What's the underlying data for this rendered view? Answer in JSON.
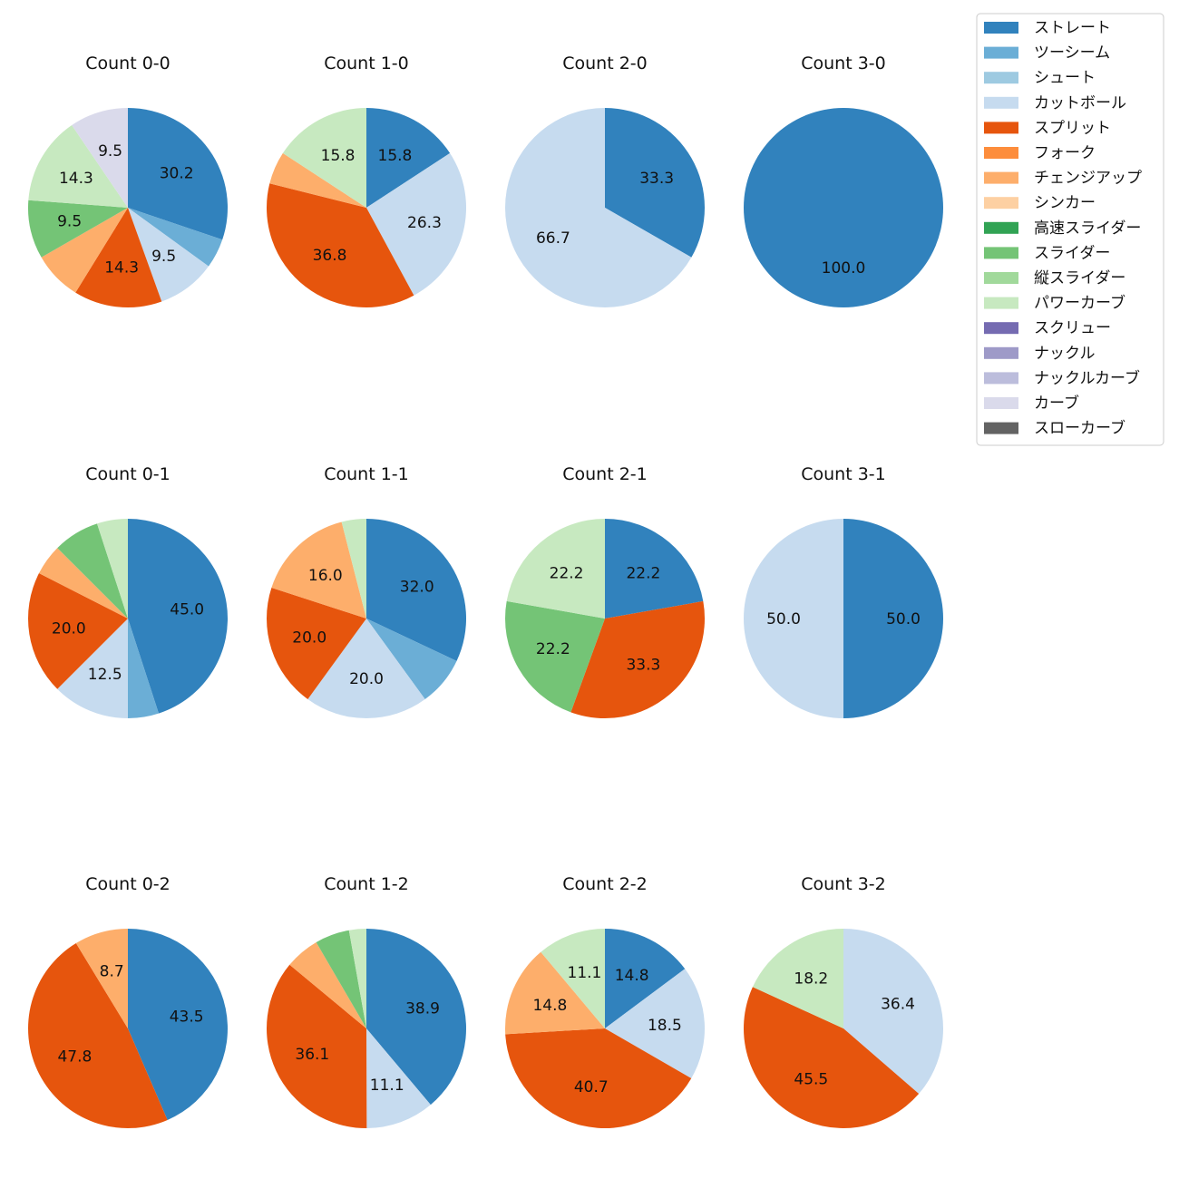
{
  "chart_data": {
    "type": "pie",
    "legend_position": "top-right",
    "categories": [
      {
        "name": "ストレート",
        "color": "#3182bd"
      },
      {
        "name": "ツーシーム",
        "color": "#6baed6"
      },
      {
        "name": "シュート",
        "color": "#9ecae1"
      },
      {
        "name": "カットボール",
        "color": "#c6dbef"
      },
      {
        "name": "スプリット",
        "color": "#e6550d"
      },
      {
        "name": "フォーク",
        "color": "#fd8d3c"
      },
      {
        "name": "チェンジアップ",
        "color": "#fdae6b"
      },
      {
        "name": "シンカー",
        "color": "#fdd0a2"
      },
      {
        "name": "高速スライダー",
        "color": "#31a354"
      },
      {
        "name": "スライダー",
        "color": "#74c476"
      },
      {
        "name": "縦スライダー",
        "color": "#a1d99b"
      },
      {
        "name": "パワーカーブ",
        "color": "#c7e9c0"
      },
      {
        "name": "スクリュー",
        "color": "#756bb1"
      },
      {
        "name": "ナックル",
        "color": "#9e9ac8"
      },
      {
        "name": "ナックルカーブ",
        "color": "#bcbddc"
      },
      {
        "name": "カーブ",
        "color": "#dadaeb"
      },
      {
        "name": "スローカーブ",
        "color": "#636363"
      }
    ],
    "pies": [
      {
        "title": "Count 0-0",
        "slices": [
          {
            "category": "ストレート",
            "value": 30.2,
            "label": "30.2"
          },
          {
            "category": "ツーシーム",
            "value": 4.8,
            "label": ""
          },
          {
            "category": "カットボール",
            "value": 9.5,
            "label": "9.5"
          },
          {
            "category": "スプリット",
            "value": 14.3,
            "label": "14.3"
          },
          {
            "category": "チェンジアップ",
            "value": 7.9,
            "label": ""
          },
          {
            "category": "スライダー",
            "value": 9.5,
            "label": "9.5"
          },
          {
            "category": "パワーカーブ",
            "value": 14.3,
            "label": "14.3"
          },
          {
            "category": "カーブ",
            "value": 9.5,
            "label": "9.5"
          }
        ]
      },
      {
        "title": "Count 1-0",
        "slices": [
          {
            "category": "ストレート",
            "value": 15.8,
            "label": "15.8"
          },
          {
            "category": "カットボール",
            "value": 26.3,
            "label": "26.3"
          },
          {
            "category": "スプリット",
            "value": 36.8,
            "label": "36.8"
          },
          {
            "category": "チェンジアップ",
            "value": 5.3,
            "label": ""
          },
          {
            "category": "パワーカーブ",
            "value": 15.8,
            "label": "15.8"
          }
        ]
      },
      {
        "title": "Count 2-0",
        "slices": [
          {
            "category": "ストレート",
            "value": 33.3,
            "label": "33.3"
          },
          {
            "category": "カットボール",
            "value": 66.7,
            "label": "66.7"
          }
        ]
      },
      {
        "title": "Count 3-0",
        "slices": [
          {
            "category": "ストレート",
            "value": 100.0,
            "label": "100.0"
          }
        ]
      },
      {
        "title": "Count 0-1",
        "slices": [
          {
            "category": "ストレート",
            "value": 45.0,
            "label": "45.0"
          },
          {
            "category": "ツーシーム",
            "value": 5.0,
            "label": ""
          },
          {
            "category": "カットボール",
            "value": 12.5,
            "label": "12.5"
          },
          {
            "category": "スプリット",
            "value": 20.0,
            "label": "20.0"
          },
          {
            "category": "チェンジアップ",
            "value": 5.0,
            "label": ""
          },
          {
            "category": "スライダー",
            "value": 7.5,
            "label": ""
          },
          {
            "category": "パワーカーブ",
            "value": 5.0,
            "label": ""
          }
        ]
      },
      {
        "title": "Count 1-1",
        "slices": [
          {
            "category": "ストレート",
            "value": 32.0,
            "label": "32.0"
          },
          {
            "category": "ツーシーム",
            "value": 8.0,
            "label": ""
          },
          {
            "category": "カットボール",
            "value": 20.0,
            "label": "20.0"
          },
          {
            "category": "スプリット",
            "value": 20.0,
            "label": "20.0"
          },
          {
            "category": "チェンジアップ",
            "value": 16.0,
            "label": "16.0"
          },
          {
            "category": "パワーカーブ",
            "value": 4.0,
            "label": ""
          }
        ]
      },
      {
        "title": "Count 2-1",
        "slices": [
          {
            "category": "ストレート",
            "value": 22.2,
            "label": "22.2"
          },
          {
            "category": "スプリット",
            "value": 33.3,
            "label": "33.3"
          },
          {
            "category": "スライダー",
            "value": 22.2,
            "label": "22.2"
          },
          {
            "category": "パワーカーブ",
            "value": 22.2,
            "label": "22.2"
          }
        ]
      },
      {
        "title": "Count 3-1",
        "slices": [
          {
            "category": "ストレート",
            "value": 50.0,
            "label": "50.0"
          },
          {
            "category": "カットボール",
            "value": 50.0,
            "label": "50.0"
          }
        ]
      },
      {
        "title": "Count 0-2",
        "slices": [
          {
            "category": "ストレート",
            "value": 43.5,
            "label": "43.5"
          },
          {
            "category": "スプリット",
            "value": 47.8,
            "label": "47.8"
          },
          {
            "category": "チェンジアップ",
            "value": 8.7,
            "label": "8.7"
          }
        ]
      },
      {
        "title": "Count 1-2",
        "slices": [
          {
            "category": "ストレート",
            "value": 38.9,
            "label": "38.9"
          },
          {
            "category": "カットボール",
            "value": 11.1,
            "label": "11.1"
          },
          {
            "category": "スプリット",
            "value": 36.1,
            "label": "36.1"
          },
          {
            "category": "チェンジアップ",
            "value": 5.6,
            "label": ""
          },
          {
            "category": "スライダー",
            "value": 5.6,
            "label": ""
          },
          {
            "category": "パワーカーブ",
            "value": 2.8,
            "label": ""
          }
        ]
      },
      {
        "title": "Count 2-2",
        "slices": [
          {
            "category": "ストレート",
            "value": 14.8,
            "label": "14.8"
          },
          {
            "category": "カットボール",
            "value": 18.5,
            "label": "18.5"
          },
          {
            "category": "スプリット",
            "value": 40.7,
            "label": "40.7"
          },
          {
            "category": "チェンジアップ",
            "value": 14.8,
            "label": "14.8"
          },
          {
            "category": "パワーカーブ",
            "value": 11.1,
            "label": "11.1"
          }
        ]
      },
      {
        "title": "Count 3-2",
        "slices": [
          {
            "category": "カットボール",
            "value": 36.4,
            "label": "36.4"
          },
          {
            "category": "スプリット",
            "value": 45.5,
            "label": "45.5"
          },
          {
            "category": "パワーカーブ",
            "value": 18.2,
            "label": "18.2"
          }
        ]
      }
    ]
  }
}
